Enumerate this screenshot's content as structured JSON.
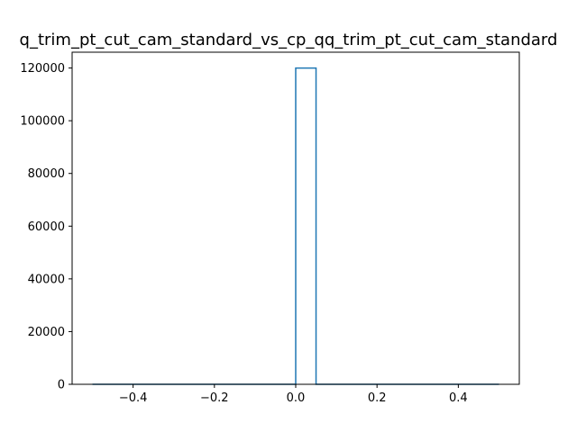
{
  "chart_data": {
    "type": "histogram",
    "title": "q_trim_pt_cut_cam_standard_vs_cp_qq_trim_pt_cut_cam_standard",
    "xlabel": "",
    "ylabel": "",
    "xlim": [
      -0.55,
      0.55
    ],
    "ylim": [
      0,
      126000
    ],
    "bin_edges": [
      -0.5,
      -0.45,
      -0.4,
      -0.35,
      -0.3,
      -0.25,
      -0.2,
      -0.15,
      -0.1,
      -0.05,
      0.0,
      0.05,
      0.1,
      0.15,
      0.2,
      0.25,
      0.3,
      0.35,
      0.4,
      0.45,
      0.5
    ],
    "counts": [
      0,
      0,
      0,
      0,
      0,
      0,
      0,
      0,
      0,
      0,
      120000,
      0,
      0,
      0,
      0,
      0,
      0,
      0,
      0,
      0
    ],
    "histtype": "step",
    "line_color": "#1f77b4",
    "xticks": [
      -0.4,
      -0.2,
      0.0,
      0.2,
      0.4
    ],
    "xtick_labels": [
      "−0.4",
      "−0.2",
      "0.0",
      "0.2",
      "0.4"
    ],
    "yticks": [
      0,
      20000,
      40000,
      60000,
      80000,
      100000,
      120000
    ],
    "ytick_labels": [
      "0",
      "20000",
      "40000",
      "60000",
      "80000",
      "100000",
      "120000"
    ],
    "grid": false,
    "legend": "none"
  }
}
